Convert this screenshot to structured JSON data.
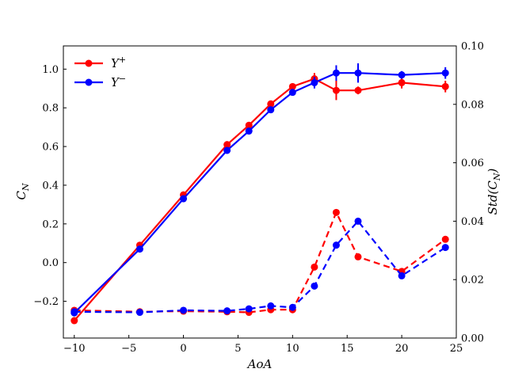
{
  "chart_data": {
    "type": "line",
    "title": "",
    "xlabel": "AoA",
    "ylabel_left": "C_N",
    "ylabel_right": "Std(C_N)",
    "xlim": [
      -11,
      25
    ],
    "ylim_left": [
      -0.39,
      1.12
    ],
    "ylim_right": [
      0.0,
      0.1
    ],
    "xticks": [
      -10,
      -5,
      0,
      5,
      10,
      15,
      20,
      25
    ],
    "xtick_labels": [
      "−10",
      "−5",
      "0",
      "5",
      "10",
      "15",
      "20",
      "25"
    ],
    "yticks_left": [
      -0.2,
      0.0,
      0.2,
      0.4,
      0.6,
      0.8,
      1.0
    ],
    "ytick_labels_left": [
      "−0.2",
      "0.0",
      "0.2",
      "0.4",
      "0.6",
      "0.8",
      "1.0"
    ],
    "yticks_right": [
      0.0,
      0.02,
      0.04,
      0.06,
      0.08,
      0.1
    ],
    "ytick_labels_right": [
      "0.00",
      "0.02",
      "0.04",
      "0.06",
      "0.08",
      "0.10"
    ],
    "grid": false,
    "legend_position": "top-left",
    "series": [
      {
        "name": "Y+",
        "label_base": "Y",
        "label_sup": "+",
        "color": "#ff0000",
        "x": [
          -10,
          -4,
          0,
          4,
          6,
          8,
          10,
          12,
          14,
          16,
          20,
          24
        ],
        "mean": [
          -0.3,
          0.09,
          0.35,
          0.61,
          0.71,
          0.82,
          0.91,
          0.95,
          0.89,
          0.89,
          0.93,
          0.91
        ],
        "mean_err": [
          0.0,
          0.0,
          0.0,
          0.0,
          0.0,
          0.0,
          0.0,
          0.03,
          0.05,
          0.02,
          0.03,
          0.03
        ],
        "std": [
          0.0095,
          0.009,
          0.0092,
          0.009,
          0.0088,
          0.0097,
          0.0097,
          0.0243,
          0.043,
          0.0278,
          0.0228,
          0.0338
        ]
      },
      {
        "name": "Y−",
        "label_base": "Y",
        "label_sup": "−",
        "color": "#0000ff",
        "x": [
          -10,
          -4,
          0,
          4,
          6,
          8,
          10,
          12,
          14,
          16,
          20,
          24
        ],
        "mean": [
          -0.26,
          0.07,
          0.33,
          0.58,
          0.68,
          0.79,
          0.88,
          0.93,
          0.98,
          0.98,
          0.97,
          0.98
        ],
        "mean_err": [
          0.0,
          0.0,
          0.0,
          0.0,
          0.0,
          0.0,
          0.0,
          0.03,
          0.04,
          0.05,
          0.02,
          0.03
        ],
        "std": [
          0.009,
          0.0088,
          0.0095,
          0.0093,
          0.01,
          0.011,
          0.0105,
          0.0178,
          0.0318,
          0.04,
          0.0213,
          0.031
        ]
      }
    ]
  }
}
